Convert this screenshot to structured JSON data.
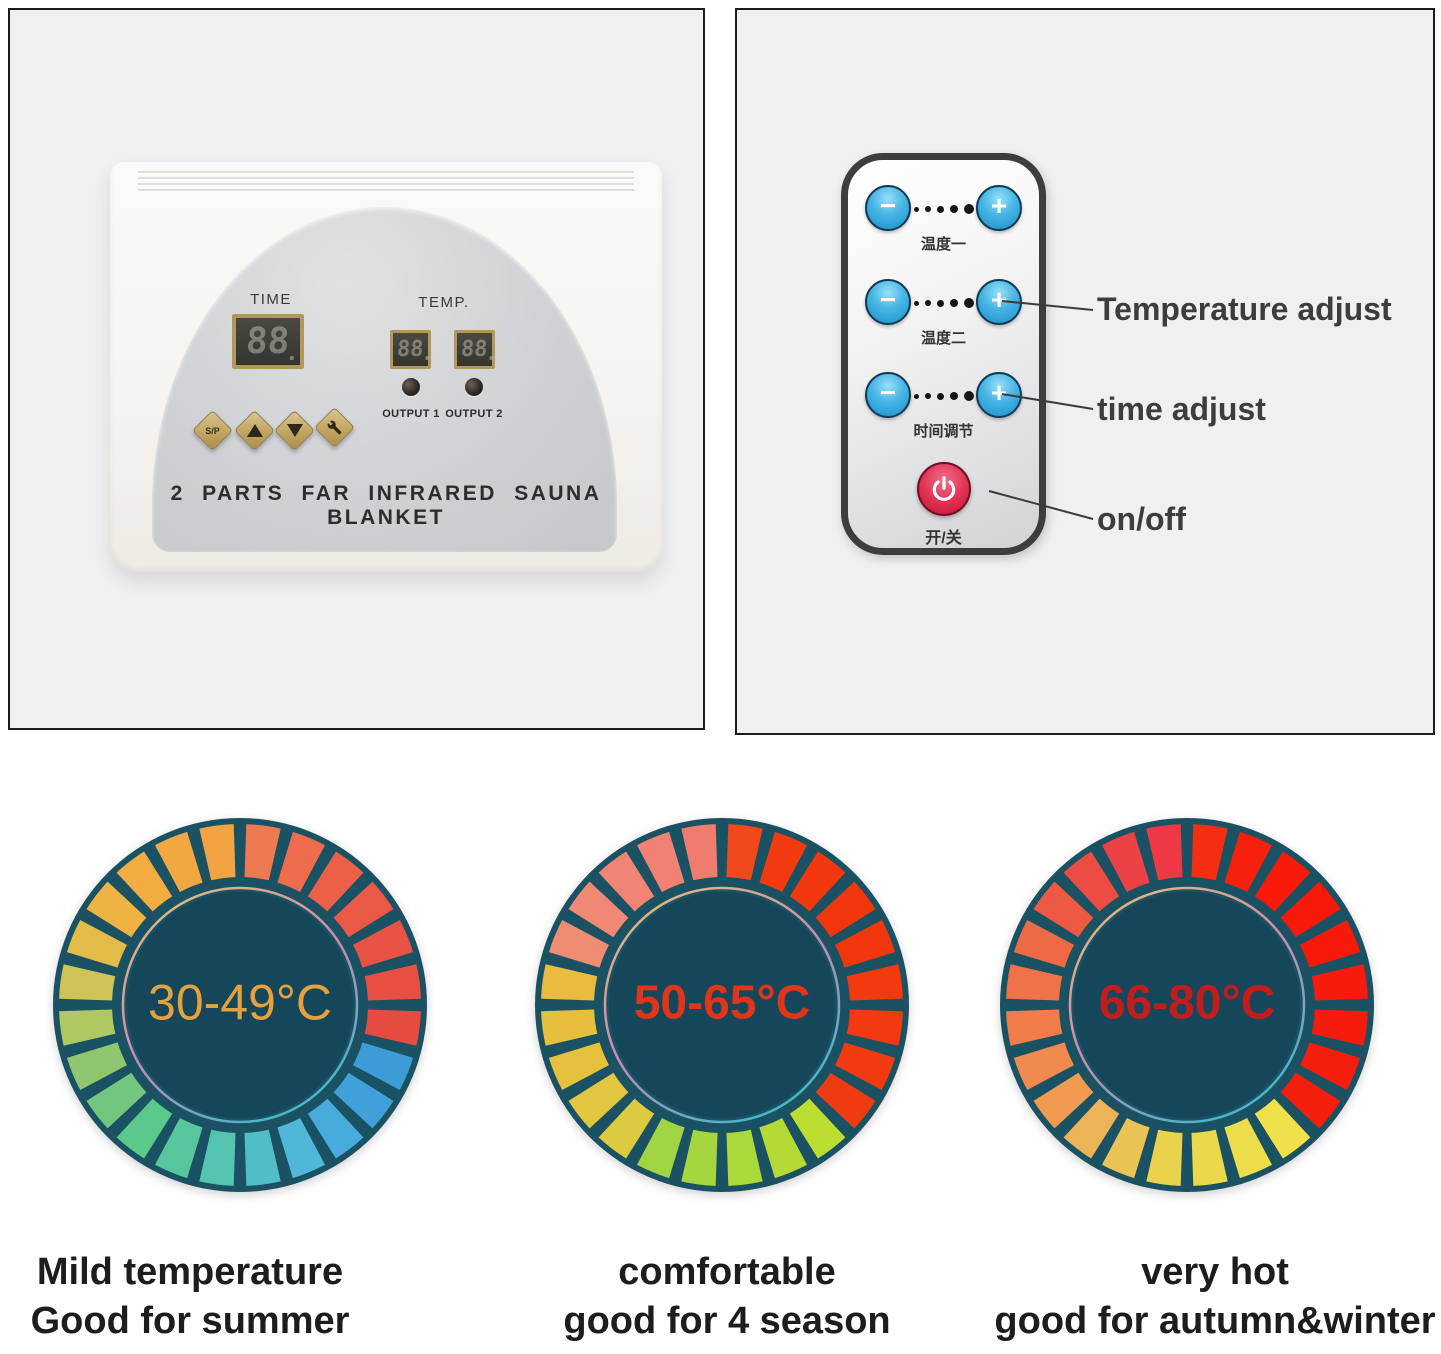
{
  "colors": {
    "panel_bg": "#f0f0f2",
    "panel_border": "#1c1c1c",
    "device_body": "#f6f4f0",
    "dome_gray": "#cfd1d4",
    "gold_button": "#c4a865",
    "display_frame": "#b2975b",
    "remote_border": "#3d3d3f",
    "blue_button": "#2ba6dc",
    "power_red": "#d91f42",
    "dial_base_teal": "#1a5163",
    "annotation_text": "#3d3d3d"
  },
  "controller": {
    "time_label": "TIME",
    "temp_label": "TEMP.",
    "time_display": "88",
    "temp_display_1": "88",
    "temp_display_2": "88",
    "output1_label": "OUTPUT 1",
    "output2_label": "OUTPUT 2",
    "sp_button_label": "S/P",
    "up_button_icon": "triangle-up",
    "down_button_icon": "triangle-down",
    "set_button_icon": "wrench",
    "title": "2 PARTS FAR INFRARED SAUNA BLANKET"
  },
  "remote": {
    "rows": [
      {
        "minus": "−",
        "plus": "+",
        "label": "温度一"
      },
      {
        "minus": "−",
        "plus": "+",
        "label": "温度二"
      },
      {
        "minus": "−",
        "plus": "+",
        "label": "时间调节"
      }
    ],
    "power_icon": "power",
    "power_label": "开/关",
    "annotations": [
      {
        "text": "Temperature adjust"
      },
      {
        "text": "time adjust"
      },
      {
        "text": "on/off"
      }
    ]
  },
  "dials": [
    {
      "range": "30-49°C",
      "text_color": "#e5a13d",
      "base": "#1a5163",
      "inner": "#15465a",
      "segments": [
        "#ed7a50",
        "#ec6c4b",
        "#eb6148",
        "#ea5946",
        "#e95345",
        "#e84f43",
        "#e64a40",
        "#3d9cd8",
        "#3fa0da",
        "#47abdc",
        "#4fb7d8",
        "#51bec6",
        "#54c4b1",
        "#57c69c",
        "#5bc88c",
        "#72c67d",
        "#90c76e",
        "#afc862",
        "#cdc356",
        "#e3bb49",
        "#eeb343",
        "#f1ad41",
        "#f2a840",
        "#f2a342"
      ]
    },
    {
      "range": "50-65°C",
      "text_color": "#e0341b",
      "base": "#1a5163",
      "inner": "#15465a",
      "segments": [
        "#f1491b",
        "#f23c10",
        "#f2380d",
        "#f2360c",
        "#f2370d",
        "#f3390e",
        "#f23a10",
        "#f13a0f",
        "#ef3b12",
        "#bcdd31",
        "#b4da36",
        "#acd83a",
        "#a6d63e",
        "#a1d442",
        "#dcca3f",
        "#e2c63d",
        "#e6c23c",
        "#e8bf3d",
        "#e9bb3e",
        "#ee8d71",
        "#f08973",
        "#f08575",
        "#f08173",
        "#ef7c6f"
      ]
    },
    {
      "range": "66-80°C",
      "text_color": "#c21d1d",
      "base": "#1a5163",
      "inner": "#15465a",
      "segments": [
        "#f52d12",
        "#f7200c",
        "#f81b0a",
        "#f8190a",
        "#f71a0b",
        "#f61b0c",
        "#f51c0e",
        "#f51d0e",
        "#f61e0d",
        "#f0e14a",
        "#eedd4a",
        "#ecd84b",
        "#ead34c",
        "#e9c353",
        "#ecb456",
        "#f09a52",
        "#f08a4d",
        "#f07d49",
        "#ef7346",
        "#ee6a44",
        "#ed5a43",
        "#ec4c44",
        "#ec4246",
        "#ee3845"
      ]
    }
  ],
  "captions": [
    {
      "line1": "Mild temperature",
      "line2": "Good for summer"
    },
    {
      "line1": "comfortable",
      "line2": "good for 4 season"
    },
    {
      "line1": "very hot",
      "line2": "good for autumn&winter"
    }
  ]
}
